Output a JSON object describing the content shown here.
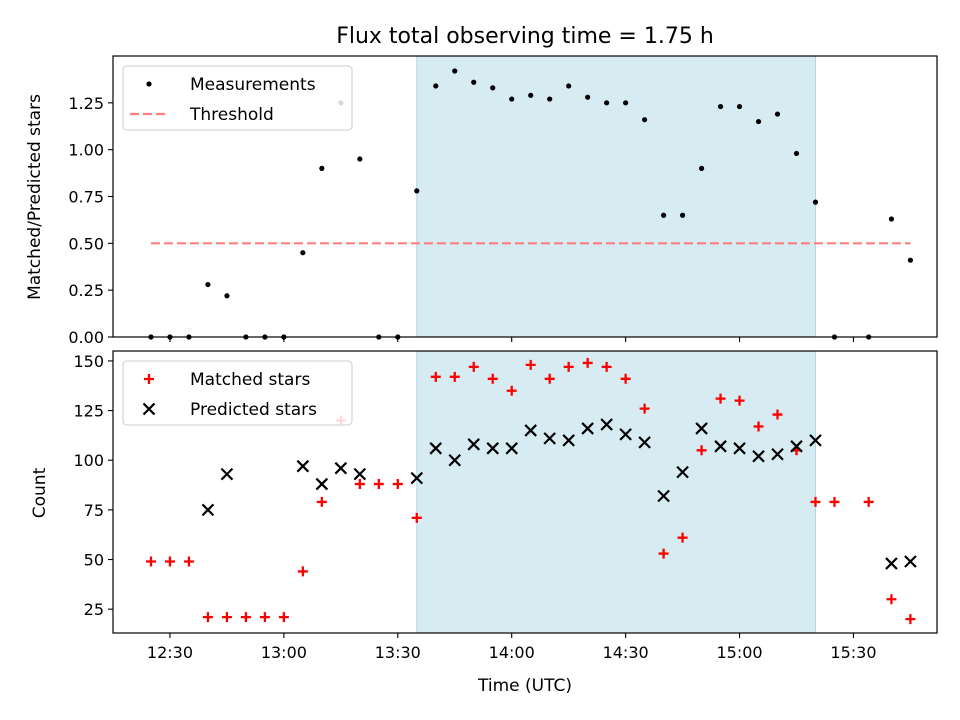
{
  "chart_data": [
    {
      "type": "scatter",
      "title": "Flux total observing time = 1.75 h",
      "xlabel": "",
      "ylabel": "Matched/Predicted stars",
      "xlim": [
        "12:15",
        "15:52"
      ],
      "ylim": [
        0,
        1.5
      ],
      "yticks": [
        0.0,
        0.25,
        0.5,
        0.75,
        1.0,
        1.25
      ],
      "ytick_labels": [
        "0.00",
        "0.25",
        "0.50",
        "0.75",
        "1.00",
        "1.25"
      ],
      "legend": "top-left",
      "highlight_span": [
        "13:35",
        "15:20"
      ],
      "highlight_color": "#add8e6",
      "series": [
        {
          "name": "Measurements",
          "marker": "dot",
          "color": "#000000",
          "x": [
            "12:25",
            "12:30",
            "12:35",
            "12:40",
            "12:45",
            "12:50",
            "12:55",
            "13:00",
            "13:05",
            "13:10",
            "13:15",
            "13:20",
            "13:25",
            "13:30",
            "13:35",
            "13:40",
            "13:45",
            "13:50",
            "13:55",
            "14:00",
            "14:05",
            "14:10",
            "14:15",
            "14:20",
            "14:25",
            "14:30",
            "14:35",
            "14:40",
            "14:45",
            "14:50",
            "14:55",
            "15:00",
            "15:05",
            "15:10",
            "15:15",
            "15:20",
            "15:25",
            "15:34",
            "15:40",
            "15:45"
          ],
          "y": [
            0.0,
            0.0,
            0.0,
            0.28,
            0.22,
            0.0,
            0.0,
            0.0,
            0.45,
            0.9,
            1.25,
            0.95,
            0.0,
            0.0,
            0.78,
            1.34,
            1.42,
            1.36,
            1.33,
            1.27,
            1.29,
            1.27,
            1.34,
            1.28,
            1.25,
            1.25,
            1.16,
            0.65,
            0.65,
            0.9,
            1.23,
            1.23,
            1.15,
            1.19,
            0.98,
            0.72,
            0.0,
            0.0,
            0.63,
            0.41
          ]
        },
        {
          "name": "Threshold",
          "style": "dashed",
          "color": "#ff7f7f",
          "x": [
            "12:25",
            "15:45"
          ],
          "y": [
            0.5,
            0.5
          ]
        }
      ]
    },
    {
      "type": "scatter",
      "title": "",
      "xlabel": "Time (UTC)",
      "ylabel": "Count",
      "xlim": [
        "12:15",
        "15:52"
      ],
      "ylim": [
        13,
        155
      ],
      "yticks": [
        25,
        50,
        75,
        100,
        125,
        150
      ],
      "ytick_labels": [
        "25",
        "50",
        "75",
        "100",
        "125",
        "150"
      ],
      "xticks": [
        "12:30",
        "13:00",
        "13:30",
        "14:00",
        "14:30",
        "15:00",
        "15:30"
      ],
      "xtick_labels": [
        "12:30",
        "13:00",
        "13:30",
        "14:00",
        "14:30",
        "15:00",
        "15:30"
      ],
      "legend": "top-left",
      "highlight_span": [
        "13:35",
        "15:20"
      ],
      "highlight_color": "#add8e6",
      "series": [
        {
          "name": "Matched stars",
          "marker": "plus",
          "color": "#ff0000",
          "x": [
            "12:25",
            "12:30",
            "12:35",
            "12:40",
            "12:45",
            "12:50",
            "12:55",
            "13:00",
            "13:05",
            "13:10",
            "13:15",
            "13:20",
            "13:25",
            "13:30",
            "13:35",
            "13:40",
            "13:45",
            "13:50",
            "13:55",
            "14:00",
            "14:05",
            "14:10",
            "14:15",
            "14:20",
            "14:25",
            "14:30",
            "14:35",
            "14:40",
            "14:45",
            "14:50",
            "14:55",
            "15:00",
            "15:05",
            "15:10",
            "15:15",
            "15:20",
            "15:25",
            "15:34",
            "15:40",
            "15:45"
          ],
          "y": [
            49,
            49,
            49,
            21,
            21,
            21,
            21,
            21,
            44,
            79,
            120,
            88,
            88,
            88,
            71,
            142,
            142,
            147,
            141,
            135,
            148,
            141,
            147,
            149,
            147,
            141,
            126,
            53,
            61,
            105,
            131,
            130,
            117,
            123,
            105,
            79,
            79,
            79,
            30,
            20
          ]
        },
        {
          "name": "Predicted stars",
          "marker": "x",
          "color": "#000000",
          "x": [
            "12:40",
            "12:45",
            "13:05",
            "13:10",
            "13:15",
            "13:20",
            "13:35",
            "13:40",
            "13:45",
            "13:50",
            "13:55",
            "14:00",
            "14:05",
            "14:10",
            "14:15",
            "14:20",
            "14:25",
            "14:30",
            "14:35",
            "14:40",
            "14:45",
            "14:50",
            "14:55",
            "15:00",
            "15:05",
            "15:10",
            "15:15",
            "15:20",
            "15:40",
            "15:45"
          ],
          "y": [
            75,
            93,
            97,
            88,
            96,
            93,
            91,
            106,
            100,
            108,
            106,
            106,
            115,
            111,
            110,
            116,
            118,
            113,
            109,
            82,
            94,
            116,
            107,
            106,
            102,
            103,
            107,
            110,
            48,
            49
          ]
        }
      ]
    }
  ]
}
